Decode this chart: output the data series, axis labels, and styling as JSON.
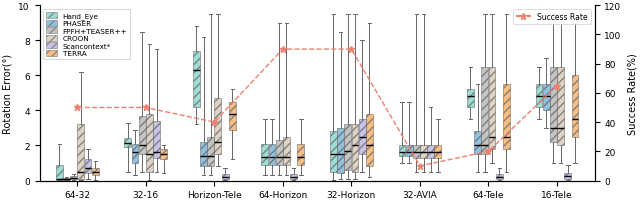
{
  "categories": [
    "64-32",
    "32-16",
    "Horizon-Tele",
    "64-Horizon",
    "32-Horizon",
    "32-AVIA",
    "64-Tele",
    "16-Tele"
  ],
  "methods": [
    "Hand_Eye",
    "PHASER",
    "FPFH+TEASER++",
    "CROON",
    "Scancontext*",
    "TERRA"
  ],
  "colors": [
    "#7dd4c8",
    "#6baed6",
    "#b0b0b0",
    "#d4c5b0",
    "#b8aee0",
    "#f5a85a"
  ],
  "ylim": [
    0,
    10
  ],
  "y2lim": [
    0,
    120
  ],
  "ylabel": "Rotation Error(°)",
  "y2label": "Success Rate(%)",
  "success_rate_color": "#f08070",
  "box_data": {
    "Hand_Eye": {
      "64-32": {
        "med": 0.08,
        "q1": 0.03,
        "q3": 0.9,
        "whislo": 0.01,
        "whishi": 2.1
      },
      "32-16": {
        "med": 2.15,
        "q1": 1.9,
        "q3": 2.4,
        "whislo": 0.5,
        "whishi": 3.3
      },
      "Horizon-Tele": {
        "med": 6.3,
        "q1": 4.2,
        "q3": 7.4,
        "whislo": 3.2,
        "whishi": 8.8
      },
      "64-Horizon": {
        "med": 1.35,
        "q1": 0.9,
        "q3": 2.1,
        "whislo": 0.3,
        "whishi": 3.5
      },
      "32-Horizon": {
        "med": 1.5,
        "q1": 0.5,
        "q3": 2.8,
        "whislo": 0.05,
        "whishi": 9.5
      },
      "32-AVIA": {
        "med": 1.6,
        "q1": 1.4,
        "q3": 2.0,
        "whislo": 1.0,
        "whishi": 4.5
      },
      "64-Tele": {
        "med": 4.8,
        "q1": 4.2,
        "q3": 5.2,
        "whislo": 3.5,
        "whishi": 6.5
      },
      "16-Tele": {
        "med": 4.8,
        "q1": 4.2,
        "q3": 5.5,
        "whislo": 3.5,
        "whishi": 6.5
      }
    },
    "PHASER": {
      "64-32": {
        "med": 0.08,
        "q1": 0.03,
        "q3": 0.12,
        "whislo": 0.01,
        "whishi": 0.18
      },
      "32-16": {
        "med": 1.65,
        "q1": 1.0,
        "q3": 2.1,
        "whislo": 0.3,
        "whishi": 2.9
      },
      "Horizon-Tele": {
        "med": 1.4,
        "q1": 0.8,
        "q3": 2.2,
        "whislo": 0.3,
        "whishi": 8.2
      },
      "64-Horizon": {
        "med": 1.35,
        "q1": 0.9,
        "q3": 2.1,
        "whislo": 0.3,
        "whishi": 3.5
      },
      "32-Horizon": {
        "med": 1.5,
        "q1": 0.4,
        "q3": 3.0,
        "whislo": 0.1,
        "whishi": 8.5
      },
      "32-AVIA": {
        "med": 1.6,
        "q1": 1.4,
        "q3": 2.0,
        "whislo": 1.0,
        "whishi": 4.5
      },
      "64-Tele": {
        "med": 2.0,
        "q1": 1.5,
        "q3": 2.8,
        "whislo": 0.5,
        "whishi": 5.5
      },
      "16-Tele": {
        "med": 4.8,
        "q1": 4.0,
        "q3": 5.5,
        "whislo": 3.0,
        "whishi": 7.0
      }
    },
    "FPFH+TEASER++": {
      "64-32": {
        "med": 0.15,
        "q1": 0.1,
        "q3": 0.25,
        "whislo": 0.05,
        "whishi": 0.35
      },
      "32-16": {
        "med": 2.0,
        "q1": 1.5,
        "q3": 3.7,
        "whislo": 0.5,
        "whishi": 8.5
      },
      "Horizon-Tele": {
        "med": 1.4,
        "q1": 0.8,
        "q3": 2.5,
        "whislo": 0.3,
        "whishi": 9.5
      },
      "64-Horizon": {
        "med": 1.35,
        "q1": 0.9,
        "q3": 2.3,
        "whislo": 0.3,
        "whishi": 9.0
      },
      "32-Horizon": {
        "med": 1.7,
        "q1": 0.6,
        "q3": 3.2,
        "whislo": 0.1,
        "whishi": 9.5
      },
      "32-AVIA": {
        "med": 1.6,
        "q1": 1.3,
        "q3": 2.0,
        "whislo": 0.5,
        "whishi": 9.5
      },
      "64-Tele": {
        "med": 2.0,
        "q1": 1.5,
        "q3": 6.5,
        "whislo": 0.5,
        "whishi": 9.5
      },
      "16-Tele": {
        "med": 3.0,
        "q1": 2.2,
        "q3": 6.5,
        "whislo": 1.0,
        "whishi": 9.5
      }
    },
    "CROON": {
      "64-32": {
        "med": 0.5,
        "q1": 0.1,
        "q3": 3.2,
        "whislo": 0.03,
        "whishi": 6.2
      },
      "32-16": {
        "med": 1.5,
        "q1": 0.5,
        "q3": 3.8,
        "whislo": 0.05,
        "whishi": 7.8
      },
      "Horizon-Tele": {
        "med": 2.2,
        "q1": 1.5,
        "q3": 4.7,
        "whislo": 0.8,
        "whishi": 9.5
      },
      "64-Horizon": {
        "med": 1.35,
        "q1": 0.9,
        "q3": 2.5,
        "whislo": 0.3,
        "whishi": 9.0
      },
      "32-Horizon": {
        "med": 2.0,
        "q1": 0.5,
        "q3": 3.2,
        "whislo": 0.1,
        "whishi": 9.5
      },
      "32-AVIA": {
        "med": 1.6,
        "q1": 1.3,
        "q3": 2.0,
        "whislo": 0.5,
        "whishi": 9.5
      },
      "64-Tele": {
        "med": 2.5,
        "q1": 1.8,
        "q3": 6.5,
        "whislo": 1.0,
        "whishi": 9.5
      },
      "16-Tele": {
        "med": 3.0,
        "q1": 2.0,
        "q3": 6.5,
        "whislo": 1.0,
        "whishi": 9.5
      }
    },
    "Scancontext*": {
      "64-32": {
        "med": 0.7,
        "q1": 0.4,
        "q3": 1.2,
        "whislo": 0.1,
        "whishi": 1.8
      },
      "32-16": {
        "med": 1.6,
        "q1": 1.3,
        "q3": 3.4,
        "whislo": 0.5,
        "whishi": 7.5
      },
      "Horizon-Tele": {
        "med": 0.22,
        "q1": 0.08,
        "q3": 0.38,
        "whislo": 0.02,
        "whishi": 0.7
      },
      "64-Horizon": {
        "med": 0.22,
        "q1": 0.08,
        "q3": 0.38,
        "whislo": 0.02,
        "whishi": 0.7
      },
      "32-Horizon": {
        "med": 2.5,
        "q1": 1.5,
        "q3": 3.5,
        "whislo": 0.5,
        "whishi": 8.0
      },
      "32-AVIA": {
        "med": 1.6,
        "q1": 1.3,
        "q3": 2.0,
        "whislo": 0.5,
        "whishi": 4.2
      },
      "64-Tele": {
        "med": 0.22,
        "q1": 0.08,
        "q3": 0.38,
        "whislo": 0.02,
        "whishi": 0.7
      },
      "16-Tele": {
        "med": 0.28,
        "q1": 0.1,
        "q3": 0.45,
        "whislo": 0.02,
        "whishi": 0.9
      }
    },
    "TERRA": {
      "64-32": {
        "med": 0.5,
        "q1": 0.3,
        "q3": 0.7,
        "whislo": 0.05,
        "whishi": 1.1
      },
      "32-16": {
        "med": 1.5,
        "q1": 1.2,
        "q3": 1.8,
        "whislo": 0.4,
        "whishi": 2.0
      },
      "Horizon-Tele": {
        "med": 3.8,
        "q1": 2.9,
        "q3": 4.5,
        "whislo": 1.2,
        "whishi": 5.2
      },
      "64-Horizon": {
        "med": 1.35,
        "q1": 0.9,
        "q3": 2.1,
        "whislo": 0.3,
        "whishi": 3.5
      },
      "32-Horizon": {
        "med": 2.0,
        "q1": 0.8,
        "q3": 3.8,
        "whislo": 0.2,
        "whishi": 9.0
      },
      "32-AVIA": {
        "med": 1.6,
        "q1": 1.3,
        "q3": 2.0,
        "whislo": 0.5,
        "whishi": 3.5
      },
      "64-Tele": {
        "med": 2.5,
        "q1": 1.8,
        "q3": 5.5,
        "whislo": 0.5,
        "whishi": 9.5
      },
      "16-Tele": {
        "med": 3.5,
        "q1": 2.5,
        "q3": 6.0,
        "whislo": 1.0,
        "whishi": 9.0
      }
    }
  },
  "success_rate": {
    "64-32": 50,
    "32-16": 50,
    "Horizon-Tele": 40,
    "64-Horizon": 90,
    "32-Horizon": 90,
    "32-AVIA": 10,
    "64-Tele": 20,
    "16-Tele": 65
  }
}
